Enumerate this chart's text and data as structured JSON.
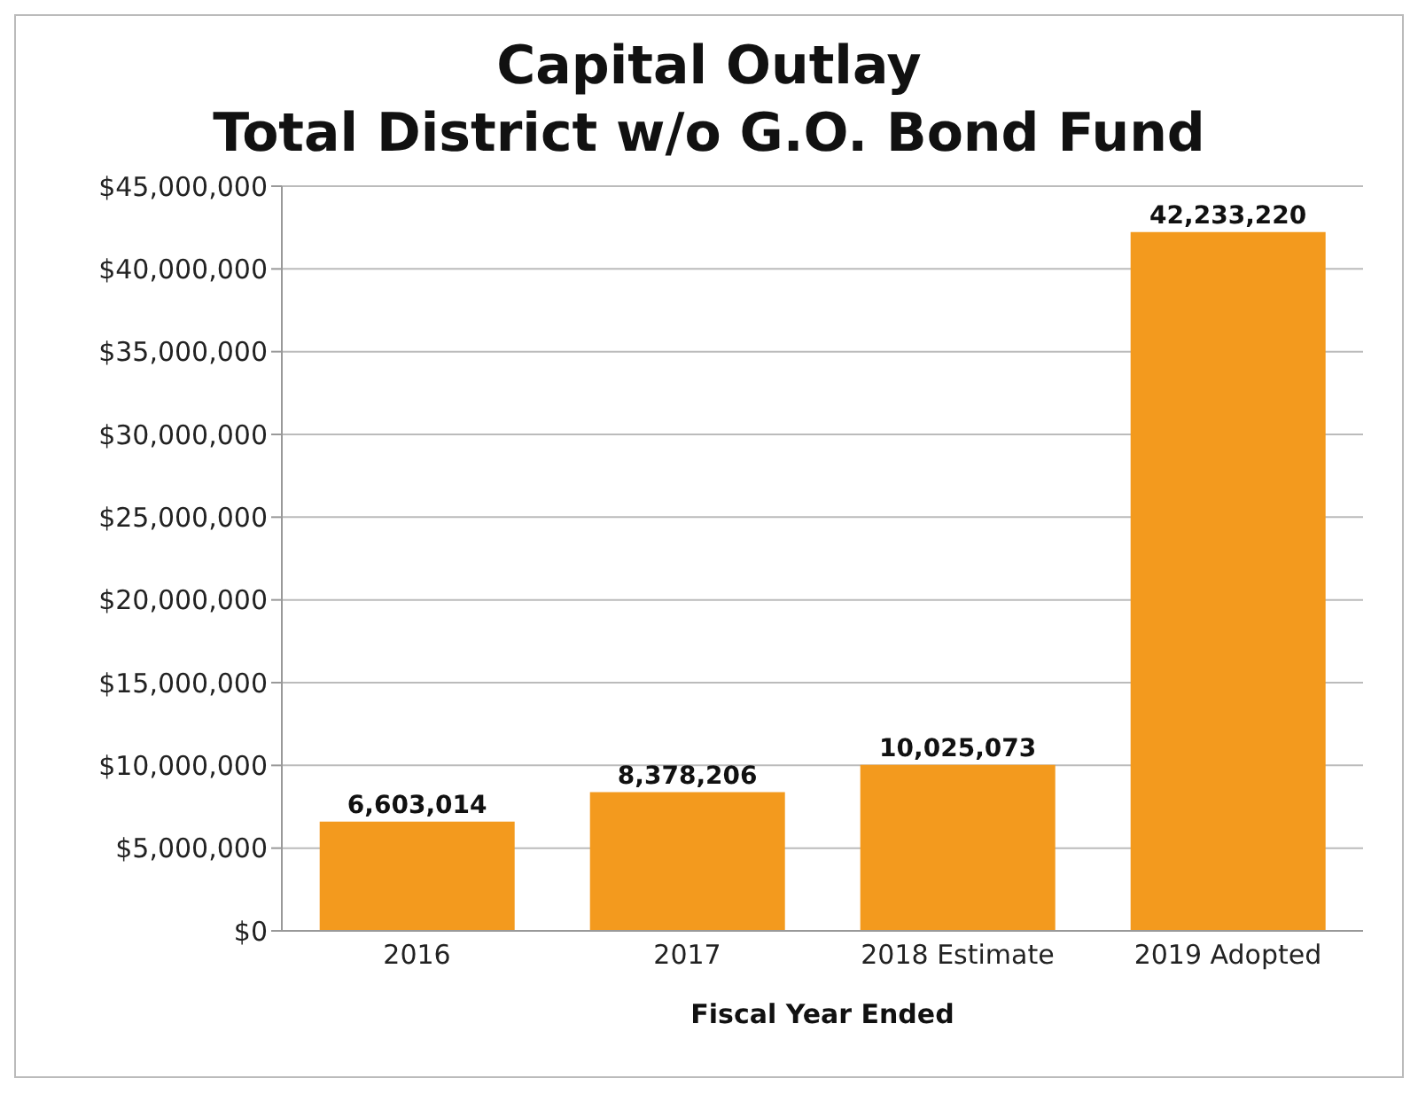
{
  "chart_data": {
    "type": "bar",
    "title": "Capital Outlay\nTotal District w/o G.O. Bond Fund",
    "xlabel": "Fiscal Year Ended",
    "categories": [
      "2016",
      "2017",
      "2018 Estimate",
      "2019 Adopted"
    ],
    "values": [
      6603014,
      8378206,
      10025073,
      42233220
    ],
    "color": "#f39a1e",
    "ylim": [
      0,
      45000000
    ],
    "yticks": [
      {
        "value": 0,
        "label": "$0"
      },
      {
        "value": 5000000,
        "label": "$5,000,000"
      },
      {
        "value": 10000000,
        "label": "$10,000,000"
      },
      {
        "value": 15000000,
        "label": "$15,000,000"
      },
      {
        "value": 20000000,
        "label": "$20,000,000"
      },
      {
        "value": 25000000,
        "label": "$25,000,000"
      },
      {
        "value": 30000000,
        "label": "$30,000,000"
      },
      {
        "value": 35000000,
        "label": "$35,000,000"
      },
      {
        "value": 40000000,
        "label": "$40,000,000"
      },
      {
        "value": 45000000,
        "label": "$45,000,000"
      }
    ],
    "value_labels": [
      "6,603,014",
      "8,378,206",
      "10,025,073",
      "42,233,220"
    ],
    "grid": "y"
  }
}
